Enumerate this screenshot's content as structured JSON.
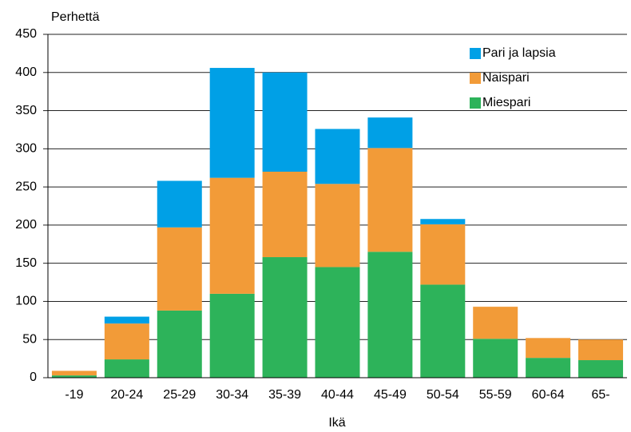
{
  "chart_data": {
    "type": "stacked_bar",
    "y_label": "Perhettä",
    "x_label": "Ikä",
    "categories": [
      "-19",
      "20-24",
      "25-29",
      "30-34",
      "35-39",
      "40-44",
      "45-49",
      "50-54",
      "55-59",
      "60-64",
      "65-"
    ],
    "series": [
      {
        "name": "Miespari",
        "color": "#2db35a",
        "values": [
          3,
          24,
          88,
          110,
          158,
          145,
          165,
          122,
          51,
          26,
          23
        ]
      },
      {
        "name": "Naispari",
        "color": "#f29b38",
        "values": [
          6,
          47,
          109,
          152,
          112,
          109,
          136,
          79,
          42,
          26,
          27
        ]
      },
      {
        "name": "Pari ja lapsia",
        "color": "#00a0e6",
        "values": [
          0,
          9,
          61,
          144,
          130,
          72,
          40,
          7,
          0,
          0,
          0
        ]
      }
    ],
    "ylim": [
      0,
      450
    ],
    "yticks": [
      0,
      50,
      100,
      150,
      200,
      250,
      300,
      350,
      400,
      450
    ],
    "grid": true,
    "legend": "top-right"
  }
}
